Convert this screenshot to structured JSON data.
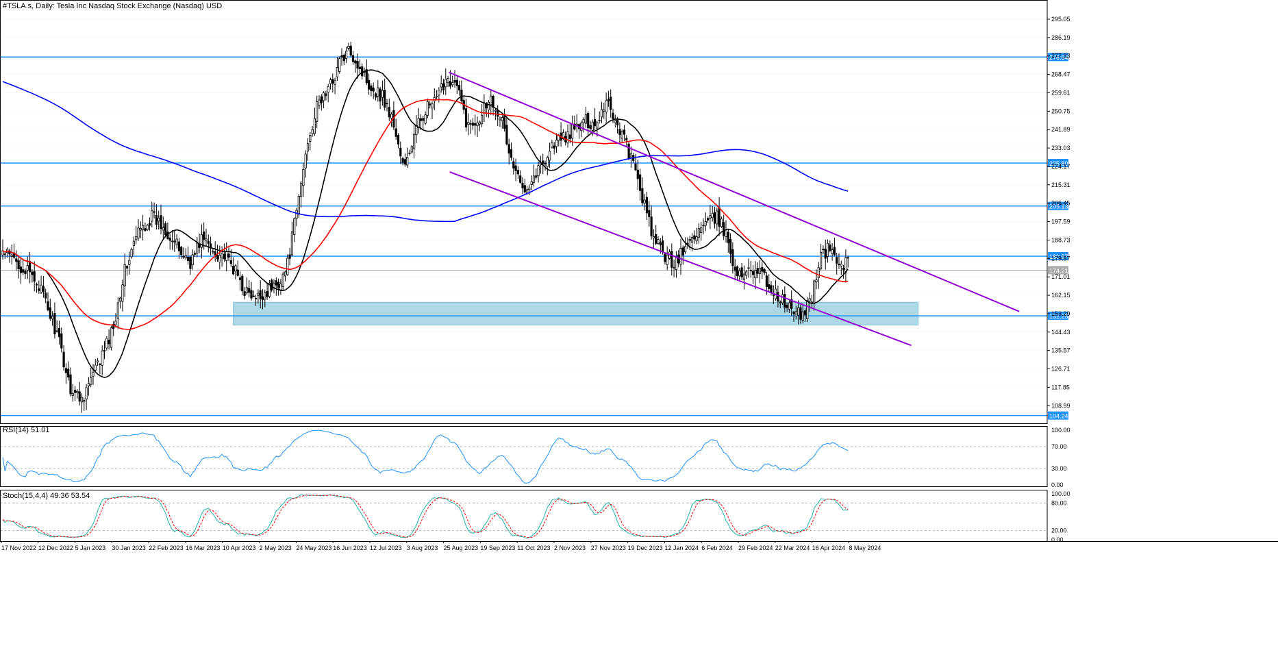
{
  "header": {
    "title": "#TSLA.s, Daily:  Tesla Inc Nasdaq Stock Exchange (Nasdaq) USD",
    "rsi_label": "RSI(14) 51.01",
    "stoch_label": "Stoch(15,4,4) 49.36 53.54"
  },
  "colors": {
    "background": "#ffffff",
    "candle": "#000000",
    "ma_fast": "#000000",
    "ma_mid": "#ff0000",
    "ma_slow": "#0000ff",
    "hlines": "#1e90ff",
    "channel": "#9400d3",
    "zone": "#add8e6",
    "rsi": "#1e90ff",
    "stoch_main": "#20b2aa",
    "stoch_signal": "#ff0000"
  },
  "chart_data": [
    {
      "type": "candlestick",
      "y_range": [
        100.5,
        300
      ],
      "y_ticks": [
        "295.05",
        "286.19",
        "277.33",
        "268.47",
        "259.61",
        "250.75",
        "241.89",
        "233.03",
        "224.17",
        "215.31",
        "206.45",
        "197.59",
        "188.73",
        "179.87",
        "171.01",
        "162.15",
        "153.29",
        "144.43",
        "135.57",
        "126.71",
        "117.85",
        "108.99"
      ],
      "x_labels": [
        "17 Nov 2022",
        "12 Dec 2022",
        "5 Jan 2023",
        "30 Jan 2023",
        "22 Feb 2023",
        "16 Mar 2023",
        "10 Apr 2023",
        "2 May 2023",
        "24 May 2023",
        "16 Jun 2023",
        "12 Jul 2023",
        "3 Aug 2023",
        "25 Aug 2023",
        "19 Sep 2023",
        "11 Oct 2023",
        "2 Nov 2023",
        "27 Nov 2023",
        "19 Dec 2023",
        "12 Jan 2024",
        "6 Feb 2024",
        "29 Feb 2024",
        "22 Mar 2024",
        "16 Apr 2024",
        "8 May 2024"
      ],
      "n_bars": 375,
      "close_anchors": [
        [
          0,
          183
        ],
        [
          8,
          178
        ],
        [
          20,
          168
        ],
        [
          30,
          145
        ],
        [
          38,
          118
        ],
        [
          44,
          112
        ],
        [
          50,
          122
        ],
        [
          56,
          133
        ],
        [
          62,
          146
        ],
        [
          68,
          172
        ],
        [
          76,
          192
        ],
        [
          84,
          200
        ],
        [
          92,
          194
        ],
        [
          100,
          183
        ],
        [
          106,
          178
        ],
        [
          112,
          190
        ],
        [
          118,
          184
        ],
        [
          124,
          182
        ],
        [
          130,
          175
        ],
        [
          136,
          165
        ],
        [
          142,
          159
        ],
        [
          148,
          164
        ],
        [
          154,
          167
        ],
        [
          160,
          175
        ],
        [
          166,
          205
        ],
        [
          172,
          238
        ],
        [
          178,
          255
        ],
        [
          184,
          262
        ],
        [
          190,
          275
        ],
        [
          196,
          280
        ],
        [
          202,
          270
        ],
        [
          208,
          262
        ],
        [
          214,
          258
        ],
        [
          220,
          245
        ],
        [
          226,
          222
        ],
        [
          232,
          240
        ],
        [
          238,
          252
        ],
        [
          244,
          255
        ],
        [
          250,
          268
        ],
        [
          256,
          262
        ],
        [
          262,
          243
        ],
        [
          268,
          248
        ],
        [
          274,
          258
        ],
        [
          280,
          250
        ],
        [
          286,
          228
        ],
        [
          292,
          214
        ],
        [
          298,
          218
        ],
        [
          304,
          226
        ],
        [
          310,
          235
        ],
        [
          316,
          238
        ],
        [
          322,
          242
        ],
        [
          328,
          246
        ],
        [
          334,
          245
        ],
        [
          338,
          252
        ],
        [
          340,
          258
        ],
        [
          344,
          248
        ],
        [
          350,
          238
        ],
        [
          356,
          222
        ],
        [
          360,
          210
        ],
        [
          366,
          190
        ],
        [
          372,
          182
        ],
        [
          378,
          178
        ],
        [
          384,
          184
        ],
        [
          390,
          192
        ],
        [
          396,
          196
        ],
        [
          402,
          200
        ],
        [
          408,
          190
        ],
        [
          414,
          170
        ],
        [
          420,
          176
        ],
        [
          426,
          174
        ],
        [
          432,
          166
        ],
        [
          438,
          160
        ],
        [
          444,
          155
        ],
        [
          450,
          152
        ],
        [
          456,
          163
        ],
        [
          460,
          180
        ],
        [
          466,
          185
        ],
        [
          470,
          178
        ],
        [
          474,
          177
        ],
        [
          476,
          178
        ]
      ],
      "horizontal_levels": [
        {
          "value": 276.84,
          "label": "276.84"
        },
        {
          "value": 225.8,
          "label": "225.80"
        },
        {
          "value": 205.13,
          "label": "205.13"
        },
        {
          "value": 180.97,
          "label": "180.97"
        },
        {
          "value": 152.25,
          "label": "152.25"
        },
        {
          "value": 104.24,
          "label": "104.24"
        }
      ],
      "current_price": {
        "value": 174.21,
        "label": "174.21"
      },
      "support_zone": {
        "from": 147.8,
        "to": 158.8
      },
      "channel_lines": [
        {
          "x0": 197.4,
          "y0": 269.5,
          "x1": 449.8,
          "y1": 154.3
        },
        {
          "x0": 197.8,
          "y0": 221.5,
          "x1": 402.0,
          "y1": 138.0
        }
      ],
      "moving_averages": [
        {
          "kind": "fast",
          "period": 20
        },
        {
          "kind": "mid",
          "period": 50
        },
        {
          "kind": "slow",
          "period": 200
        }
      ]
    },
    {
      "type": "line",
      "name": "RSI(14) 51.01",
      "y_range": [
        0,
        100
      ],
      "y_ticks": [
        "100.00",
        "70.00",
        "30.00",
        "0.00"
      ],
      "levels": [
        70,
        30
      ]
    },
    {
      "type": "line",
      "name": "Stoch(15,4,4) 49.36 53.54",
      "y_range": [
        0,
        100
      ],
      "y_ticks": [
        "100.00",
        "80.00",
        "20.00",
        "0.00"
      ],
      "levels": [
        80,
        20
      ]
    }
  ]
}
